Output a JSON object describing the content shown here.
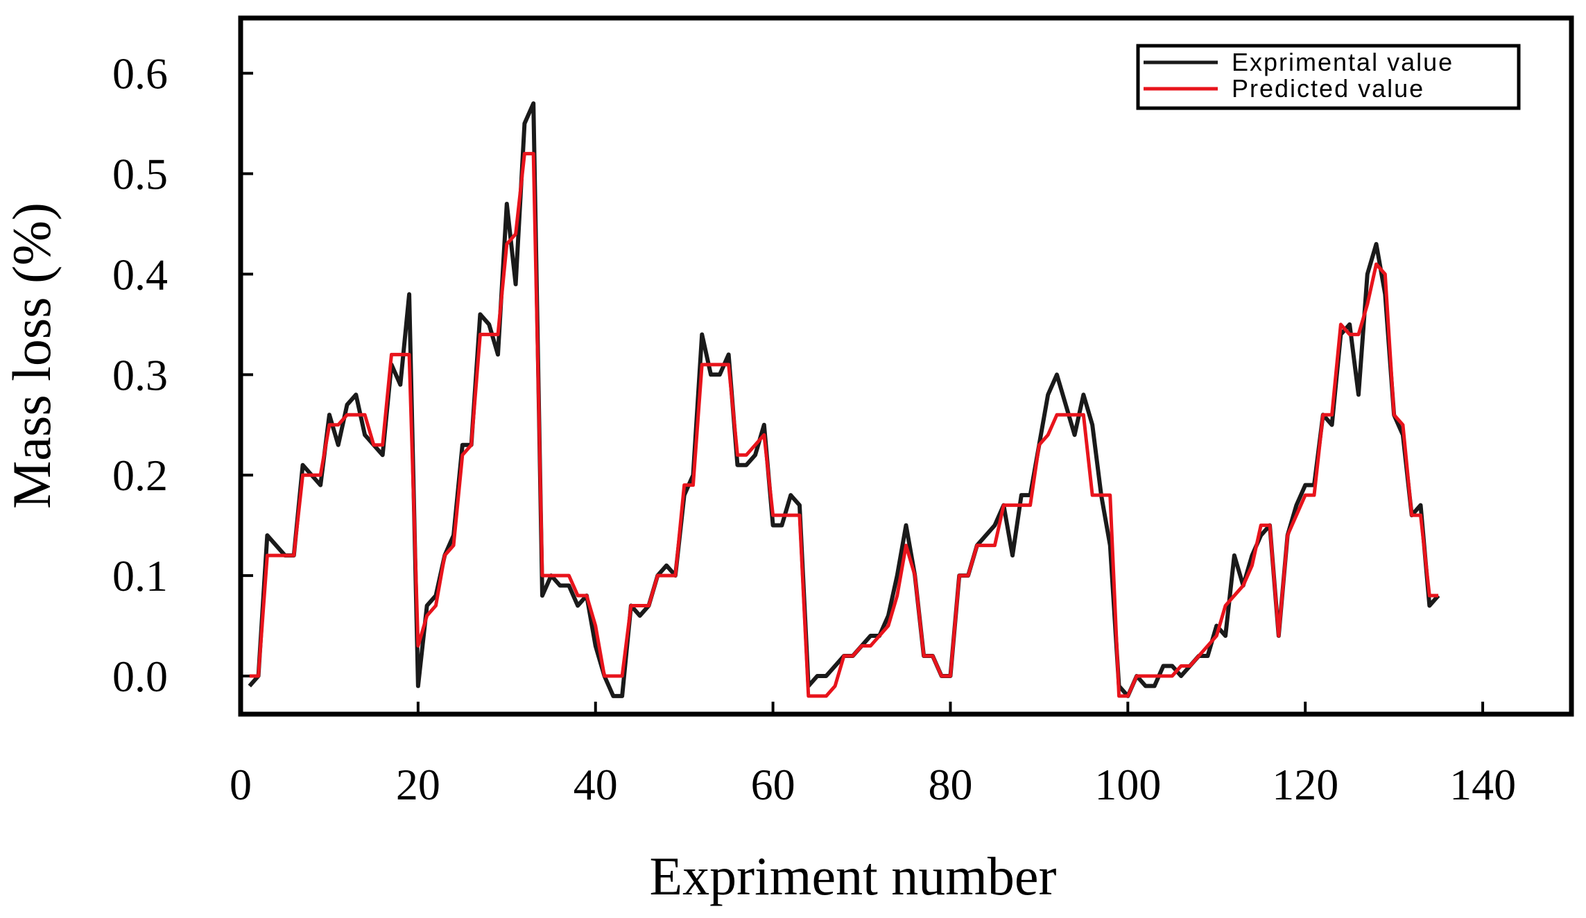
{
  "chart_data": {
    "type": "line",
    "xlabel": "Expriment number",
    "ylabel": "Mass loss (%)",
    "xlim": [
      0,
      150
    ],
    "ylim": [
      -0.038,
      0.655
    ],
    "xticks": [
      0,
      20,
      40,
      60,
      80,
      100,
      120,
      140
    ],
    "yticks": [
      {
        "value": 0,
        "label": "0.0"
      },
      0.1,
      0.2,
      0.3,
      0.4,
      0.5,
      0.6
    ],
    "legend": "upper right",
    "x": [
      1,
      2,
      3,
      4,
      5,
      6,
      7,
      8,
      9,
      10,
      11,
      12,
      13,
      14,
      15,
      16,
      17,
      18,
      19,
      20,
      21,
      22,
      23,
      24,
      25,
      26,
      27,
      28,
      29,
      30,
      31,
      32,
      33,
      34,
      35,
      36,
      37,
      38,
      39,
      40,
      41,
      42,
      43,
      44,
      45,
      46,
      47,
      48,
      49,
      50,
      51,
      52,
      53,
      54,
      55,
      56,
      57,
      58,
      59,
      60,
      61,
      62,
      63,
      64,
      65,
      66,
      67,
      68,
      69,
      70,
      71,
      72,
      73,
      74,
      75,
      76,
      77,
      78,
      79,
      80,
      81,
      82,
      83,
      84,
      85,
      86,
      87,
      88,
      89,
      90,
      91,
      92,
      93,
      94,
      95,
      96,
      97,
      98,
      99,
      100,
      101,
      102,
      103,
      104,
      105,
      106,
      107,
      108,
      109,
      110,
      111,
      112,
      113,
      114,
      115,
      116,
      117,
      118,
      119,
      120,
      121,
      122,
      123,
      124,
      125,
      126,
      127,
      128,
      129,
      130,
      131,
      132,
      133,
      134,
      135
    ],
    "series": [
      {
        "name": "Exprimental value",
        "color": "#1a1a1a",
        "values": [
          -0.01,
          0.0,
          0.14,
          0.13,
          0.12,
          0.12,
          0.21,
          0.2,
          0.19,
          0.26,
          0.23,
          0.27,
          0.28,
          0.24,
          0.23,
          0.22,
          0.31,
          0.29,
          0.38,
          -0.01,
          0.07,
          0.08,
          0.12,
          0.14,
          0.23,
          0.23,
          0.36,
          0.35,
          0.32,
          0.47,
          0.39,
          0.55,
          0.57,
          0.08,
          0.1,
          0.09,
          0.09,
          0.07,
          0.08,
          0.03,
          0.0,
          -0.02,
          -0.02,
          0.07,
          0.06,
          0.07,
          0.1,
          0.11,
          0.1,
          0.18,
          0.2,
          0.34,
          0.3,
          0.3,
          0.32,
          0.21,
          0.21,
          0.22,
          0.25,
          0.15,
          0.15,
          0.18,
          0.17,
          -0.01,
          0.0,
          0.0,
          0.01,
          0.02,
          0.02,
          0.03,
          0.04,
          0.04,
          0.06,
          0.1,
          0.15,
          0.1,
          0.02,
          0.02,
          0.0,
          0.0,
          0.1,
          0.1,
          0.13,
          0.14,
          0.15,
          0.17,
          0.12,
          0.18,
          0.18,
          0.23,
          0.28,
          0.3,
          0.27,
          0.24,
          0.28,
          0.25,
          0.18,
          0.13,
          -0.01,
          -0.02,
          0.0,
          -0.01,
          -0.01,
          0.01,
          0.01,
          0.0,
          0.01,
          0.02,
          0.02,
          0.05,
          0.04,
          0.12,
          0.09,
          0.12,
          0.14,
          0.15,
          0.04,
          0.14,
          0.17,
          0.19,
          0.19,
          0.26,
          0.25,
          0.34,
          0.35,
          0.28,
          0.4,
          0.43,
          0.38,
          0.26,
          0.24,
          0.16,
          0.17,
          0.07,
          0.08
        ]
      },
      {
        "name": "Predicted value",
        "color": "#e8141c",
        "values": [
          0.0,
          0.0,
          0.12,
          0.12,
          0.12,
          0.12,
          0.2,
          0.2,
          0.2,
          0.25,
          0.25,
          0.26,
          0.26,
          0.26,
          0.23,
          0.23,
          0.32,
          0.32,
          0.32,
          0.03,
          0.06,
          0.07,
          0.12,
          0.13,
          0.22,
          0.23,
          0.34,
          0.34,
          0.34,
          0.43,
          0.44,
          0.52,
          0.52,
          0.1,
          0.1,
          0.1,
          0.1,
          0.08,
          0.08,
          0.05,
          0.0,
          0.0,
          0.0,
          0.07,
          0.07,
          0.07,
          0.1,
          0.1,
          0.1,
          0.19,
          0.19,
          0.31,
          0.31,
          0.31,
          0.31,
          0.22,
          0.22,
          0.23,
          0.24,
          0.16,
          0.16,
          0.16,
          0.16,
          -0.02,
          -0.02,
          -0.02,
          -0.01,
          0.02,
          0.02,
          0.03,
          0.03,
          0.04,
          0.05,
          0.08,
          0.13,
          0.1,
          0.02,
          0.02,
          0.0,
          0.0,
          0.1,
          0.1,
          0.13,
          0.13,
          0.13,
          0.17,
          0.17,
          0.17,
          0.17,
          0.23,
          0.24,
          0.26,
          0.26,
          0.26,
          0.26,
          0.18,
          0.18,
          0.18,
          -0.02,
          -0.02,
          0.0,
          0.0,
          0.0,
          0.0,
          0.0,
          0.01,
          0.01,
          0.02,
          0.03,
          0.04,
          0.07,
          0.08,
          0.09,
          0.11,
          0.15,
          0.15,
          0.04,
          0.14,
          0.16,
          0.18,
          0.18,
          0.26,
          0.26,
          0.35,
          0.34,
          0.34,
          0.37,
          0.41,
          0.4,
          0.26,
          0.25,
          0.16,
          0.16,
          0.08,
          0.08
        ]
      }
    ]
  }
}
